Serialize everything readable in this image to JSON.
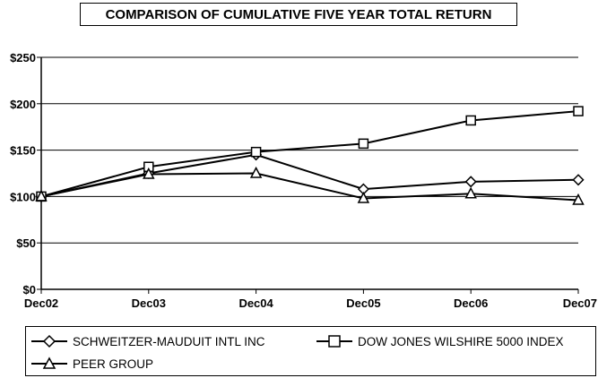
{
  "chart_data": {
    "type": "line",
    "title": "COMPARISON OF CUMULATIVE FIVE YEAR TOTAL RETURN",
    "xlabel": "",
    "ylabel": "",
    "categories": [
      "Dec02",
      "Dec03",
      "Dec04",
      "Dec05",
      "Dec06",
      "Dec07"
    ],
    "ylim": [
      0,
      250
    ],
    "y_ticks": [
      0,
      50,
      100,
      150,
      200,
      250
    ],
    "y_tick_labels": [
      "$0",
      "$50",
      "$100",
      "$150",
      "$200",
      "$250"
    ],
    "grid": "horizontal",
    "legend_position": "bottom",
    "series": [
      {
        "name": "SCHWEITZER-MAUDUIT INTL INC",
        "marker": "diamond",
        "values": [
          100,
          125,
          145,
          108,
          116,
          118
        ]
      },
      {
        "name": "DOW JONES WILSHIRE 5000 INDEX",
        "marker": "square",
        "values": [
          100,
          132,
          148,
          157,
          182,
          192
        ]
      },
      {
        "name": "PEER GROUP",
        "marker": "triangle",
        "values": [
          100,
          124,
          125,
          98,
          103,
          96
        ]
      }
    ]
  }
}
